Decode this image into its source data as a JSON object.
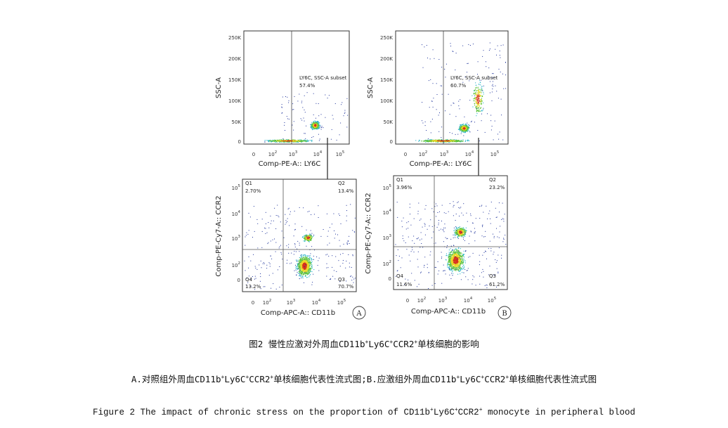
{
  "figure": {
    "plots": [
      {
        "id": "top-left",
        "ylabel": "SSC-A",
        "xlabel": "Comp-PE-A:: LY6C",
        "yticks": [
          "250K",
          "200K",
          "150K",
          "100K",
          "50K",
          "0"
        ],
        "xticks": [
          "0",
          "10",
          "10",
          "10",
          "10"
        ],
        "xtick_exps": [
          "",
          "2",
          "3",
          "4",
          "5"
        ],
        "gate_label": "LY6C, SSC-A subset",
        "gate_value": "57.4%"
      },
      {
        "id": "top-right",
        "ylabel": "SSC-A",
        "xlabel": "Comp-PE-A:: LY6C",
        "yticks": [
          "250K",
          "200K",
          "150K",
          "100K",
          "50K",
          "0"
        ],
        "xticks": [
          "0",
          "10",
          "10",
          "10",
          "10"
        ],
        "xtick_exps": [
          "",
          "2",
          "3",
          "4",
          "5"
        ],
        "gate_label": "LY6C, SSC-A subset",
        "gate_value": "60.7%"
      },
      {
        "id": "bottom-left",
        "ylabel": "Comp-PE-Cy7-A:: CCR2",
        "xlabel": "Comp-APC-A:: CD11b",
        "yticks": [
          "10",
          "10",
          "10",
          "10",
          "0"
        ],
        "ytick_exps": [
          "5",
          "4",
          "3",
          "2",
          ""
        ],
        "xticks": [
          "0",
          "10",
          "10",
          "10",
          "10"
        ],
        "xtick_exps": [
          "",
          "2",
          "3",
          "4",
          "5"
        ],
        "quadrants": {
          "q1": {
            "name": "Q1",
            "value": "2.70%"
          },
          "q2": {
            "name": "Q2",
            "value": "13.4%"
          },
          "q3": {
            "name": "Q3",
            "value": "70.7%"
          },
          "q4": {
            "name": "Q4",
            "value": "13.2%"
          }
        },
        "panel_label": "A"
      },
      {
        "id": "bottom-right",
        "ylabel": "Comp-PE-Cy7-A:: CCR2",
        "xlabel": "Comp-APC-A:: CD11b",
        "yticks": [
          "10",
          "10",
          "10",
          "10",
          "0"
        ],
        "ytick_exps": [
          "5",
          "4",
          "3",
          "2",
          ""
        ],
        "xticks": [
          "0",
          "10",
          "10",
          "10",
          "10"
        ],
        "xtick_exps": [
          "",
          "2",
          "3",
          "4",
          "5"
        ],
        "quadrants": {
          "q1": {
            "name": "Q1",
            "value": "3.96%"
          },
          "q2": {
            "name": "Q2",
            "value": "23.2%"
          },
          "q3": {
            "name": "Q3",
            "value": "61.2%"
          },
          "q4": {
            "name": "Q4",
            "value": "11.6%"
          }
        },
        "panel_label": "B"
      }
    ]
  },
  "caption": {
    "line1": {
      "a": "图2 慢性应激对外周血CD11b",
      "b": "Ly6C",
      "c": "CCR2",
      "d": "单核细胞的影响",
      "sup": "+"
    },
    "line2": {
      "a": "A.对照组外周血CD11b",
      "b": "Ly6C",
      "c": "CCR2",
      "d": "单核细胞代表性流式图;B.应激组外周血CD11b",
      "e": "Ly6C",
      "f": "CCR2",
      "g": "单核细胞代表性流式图",
      "sup": "+"
    },
    "line3": {
      "a": "Figure 2 The impact of chronic stress on the proportion of CD11b",
      "b": "Ly6C",
      "c": "CCR2",
      "d": " monocyte in peripheral blood",
      "sup": "+"
    }
  },
  "colors": {
    "dot_blue": "#1a2f9a",
    "dot_cyan": "#27b4c8",
    "dot_green": "#5cc23a",
    "dot_yellow": "#e8d826",
    "dot_red": "#d8341c"
  }
}
